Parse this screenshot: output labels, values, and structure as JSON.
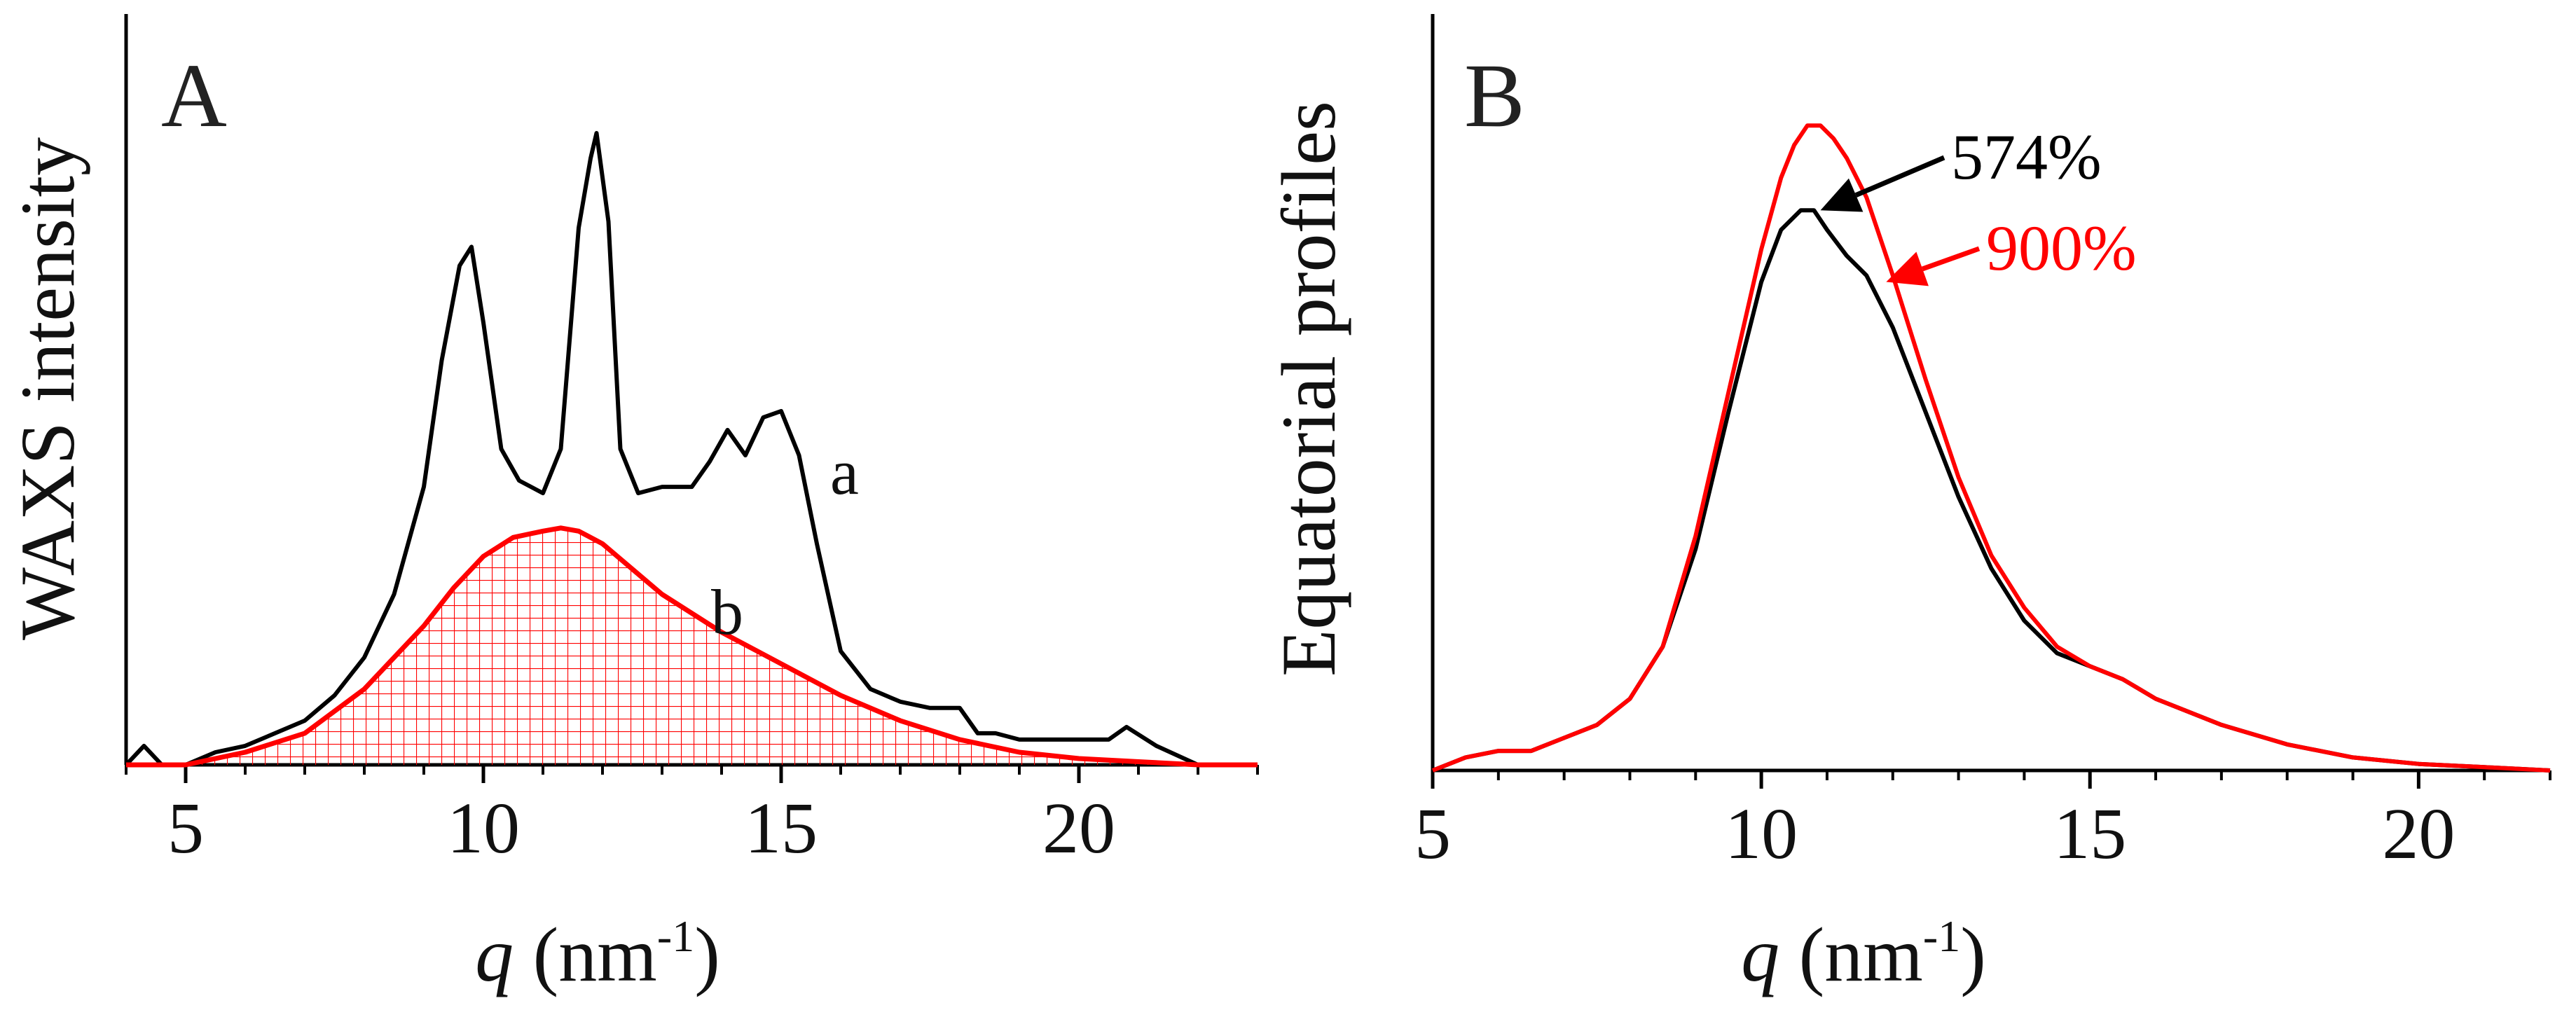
{
  "colors": {
    "black": "#000000",
    "red": "#ff0000",
    "axis": "#000000"
  },
  "chart_data": [
    {
      "type": "line",
      "panel_label": "A",
      "xlabel_q": "q",
      "xlabel_rest": " (nm",
      "xlabel_sup": "-1",
      "xlabel_close": ")",
      "ylabel": "WAXS intensity",
      "xlim": [
        4,
        23
      ],
      "ylim": [
        0,
        1.0
      ],
      "xticks": [
        5,
        10,
        15,
        20
      ],
      "xtick_labels": [
        "5",
        "10",
        "15",
        "20"
      ],
      "minor_tick_step": 1,
      "yticks_shown": false,
      "series": [
        {
          "name": "a",
          "label": "a",
          "color": "#000000",
          "x": [
            4.0,
            4.3,
            4.6,
            5.0,
            5.5,
            6.0,
            6.5,
            7.0,
            7.5,
            8.0,
            8.5,
            9.0,
            9.3,
            9.6,
            9.8,
            10.0,
            10.3,
            10.6,
            11.0,
            11.3,
            11.6,
            11.8,
            11.9,
            12.1,
            12.3,
            12.6,
            13.0,
            13.5,
            13.8,
            14.1,
            14.4,
            14.7,
            15.0,
            15.3,
            15.6,
            16.0,
            16.5,
            17.0,
            17.5,
            18.0,
            18.3,
            18.6,
            19.0,
            19.5,
            20.0,
            20.5,
            20.8,
            21.3,
            22.0,
            22.5,
            23.0
          ],
          "y": [
            0.0,
            0.03,
            0.0,
            0.0,
            0.02,
            0.03,
            0.05,
            0.07,
            0.11,
            0.17,
            0.27,
            0.44,
            0.64,
            0.79,
            0.82,
            0.7,
            0.5,
            0.45,
            0.43,
            0.5,
            0.85,
            0.96,
            1.0,
            0.86,
            0.5,
            0.43,
            0.44,
            0.44,
            0.48,
            0.53,
            0.49,
            0.55,
            0.56,
            0.49,
            0.35,
            0.18,
            0.12,
            0.1,
            0.09,
            0.09,
            0.05,
            0.05,
            0.04,
            0.04,
            0.04,
            0.04,
            0.06,
            0.03,
            0.0,
            0.0,
            0.0
          ]
        },
        {
          "name": "b",
          "label": "b",
          "color": "#ff0000",
          "fill": "hatched",
          "x": [
            4.0,
            5.0,
            6.0,
            7.0,
            8.0,
            9.0,
            9.5,
            10.0,
            10.5,
            11.0,
            11.3,
            11.6,
            12.0,
            12.5,
            13.0,
            14.0,
            15.0,
            16.0,
            17.0,
            18.0,
            19.0,
            20.0,
            21.0,
            22.0,
            23.0
          ],
          "y": [
            0.0,
            0.0,
            0.02,
            0.05,
            0.12,
            0.22,
            0.28,
            0.33,
            0.36,
            0.37,
            0.375,
            0.37,
            0.35,
            0.31,
            0.27,
            0.21,
            0.16,
            0.11,
            0.07,
            0.04,
            0.02,
            0.01,
            0.005,
            0.0,
            0.0
          ]
        }
      ]
    },
    {
      "type": "line",
      "panel_label": "B",
      "xlabel_q": "q",
      "xlabel_rest": " (nm",
      "xlabel_sup": "-1",
      "xlabel_close": ")",
      "ylabel": "Equatorial profiles",
      "xlim": [
        5,
        22
      ],
      "ylim": [
        0,
        1.0
      ],
      "xticks": [
        5,
        10,
        15,
        20
      ],
      "xtick_labels": [
        "5",
        "10",
        "15",
        "20"
      ],
      "minor_tick_step": 1,
      "yticks_shown": false,
      "annotations": [
        {
          "text": "574%",
          "color": "#000000",
          "target_x": 10.9,
          "target_y": 0.86
        },
        {
          "text": "900%",
          "color": "#ff0000",
          "target_x": 11.9,
          "target_y": 0.75
        }
      ],
      "series": [
        {
          "name": "574%",
          "color": "#000000",
          "x": [
            5.0,
            5.5,
            6.0,
            6.5,
            7.0,
            7.5,
            8.0,
            8.5,
            9.0,
            9.5,
            10.0,
            10.3,
            10.6,
            10.8,
            11.0,
            11.3,
            11.6,
            12.0,
            12.5,
            13.0,
            13.5,
            14.0,
            14.5,
            15.0,
            15.5,
            16.0,
            17.0,
            18.0,
            19.0,
            20.0,
            21.0,
            22.0
          ],
          "y": [
            0.0,
            0.02,
            0.03,
            0.03,
            0.05,
            0.07,
            0.11,
            0.19,
            0.34,
            0.55,
            0.75,
            0.83,
            0.86,
            0.86,
            0.83,
            0.79,
            0.76,
            0.68,
            0.55,
            0.42,
            0.31,
            0.23,
            0.18,
            0.16,
            0.14,
            0.11,
            0.07,
            0.04,
            0.02,
            0.01,
            0.005,
            0.0
          ]
        },
        {
          "name": "900%",
          "color": "#ff0000",
          "x": [
            5.0,
            5.5,
            6.0,
            6.5,
            7.0,
            7.5,
            8.0,
            8.5,
            9.0,
            9.5,
            10.0,
            10.3,
            10.5,
            10.7,
            10.9,
            11.1,
            11.3,
            11.6,
            12.0,
            12.5,
            13.0,
            13.5,
            14.0,
            14.5,
            15.0,
            15.5,
            16.0,
            17.0,
            18.0,
            19.0,
            20.0,
            21.0,
            22.0
          ],
          "y": [
            0.0,
            0.02,
            0.03,
            0.03,
            0.05,
            0.07,
            0.11,
            0.19,
            0.36,
            0.58,
            0.8,
            0.91,
            0.96,
            0.99,
            0.99,
            0.97,
            0.94,
            0.88,
            0.76,
            0.6,
            0.45,
            0.33,
            0.25,
            0.19,
            0.16,
            0.14,
            0.11,
            0.07,
            0.04,
            0.02,
            0.01,
            0.005,
            0.0
          ]
        }
      ]
    }
  ]
}
